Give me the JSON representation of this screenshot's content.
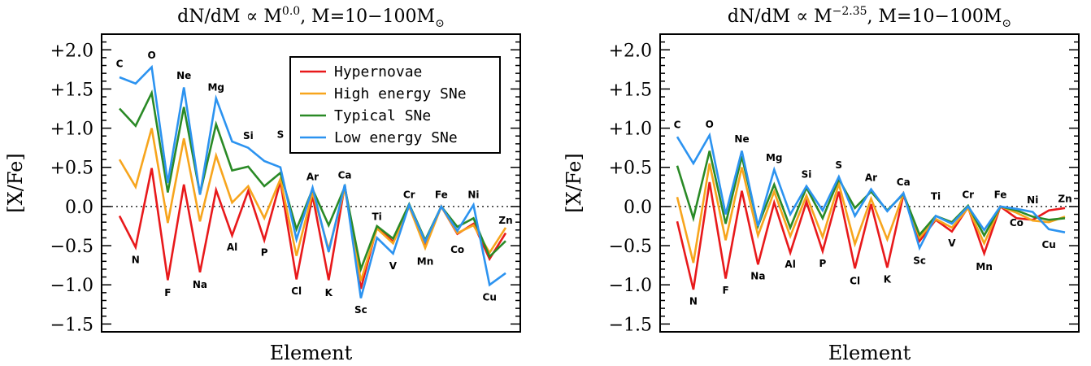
{
  "chart_data": [
    {
      "type": "line",
      "title": "dN/dM ∝ M",
      "title_exponent": "0.0",
      "title_suffix": ", M=10−100M",
      "title_sun": "⊙",
      "xlabel": "Element",
      "ylabel": "[X/Fe]",
      "ylim": [
        -1.6,
        2.2
      ],
      "yticks": [
        2.0,
        1.5,
        1.0,
        0.5,
        0.0,
        -0.5,
        -1.0,
        -1.5
      ],
      "ytick_labels": [
        "+2.0",
        "+1.5",
        "+1.0",
        "+0.5",
        "0.0",
        "−0.5",
        "−1.0",
        "−1.5"
      ],
      "reference_line": 0.0,
      "elements": [
        "C",
        "N",
        "O",
        "F",
        "Ne",
        "Na",
        "Mg",
        "Al",
        "Si",
        "P",
        "S",
        "Cl",
        "Ar",
        "K",
        "Ca",
        "Sc",
        "Ti",
        "V",
        "Cr",
        "Mn",
        "Fe",
        "Co",
        "Ni",
        "Cu",
        "Zn"
      ],
      "series": [
        {
          "name": "Hypernovae",
          "color": "#e8191b",
          "values": [
            -0.12,
            -0.52,
            0.49,
            -0.94,
            0.28,
            -0.84,
            0.21,
            -0.37,
            0.2,
            -0.43,
            0.32,
            -0.93,
            0.14,
            -0.94,
            0.27,
            -1.05,
            -0.26,
            -0.45,
            0.01,
            -0.5,
            0.0,
            -0.35,
            -0.22,
            -0.67,
            -0.34
          ]
        },
        {
          "name": "High energy SNe",
          "color": "#f7a51d",
          "values": [
            0.6,
            0.25,
            1.0,
            -0.21,
            0.87,
            -0.19,
            0.65,
            0.05,
            0.26,
            -0.15,
            0.35,
            -0.63,
            0.18,
            -0.55,
            0.23,
            -0.95,
            -0.28,
            -0.47,
            0.0,
            -0.53,
            0.0,
            -0.34,
            -0.24,
            -0.59,
            -0.27
          ]
        },
        {
          "name": "Typical SNe",
          "color": "#2a8a26",
          "values": [
            1.25,
            1.03,
            1.45,
            0.18,
            1.27,
            0.16,
            1.05,
            0.46,
            0.51,
            0.26,
            0.43,
            -0.29,
            0.22,
            -0.24,
            0.25,
            -0.8,
            -0.25,
            -0.41,
            0.03,
            -0.43,
            0.0,
            -0.26,
            -0.15,
            -0.64,
            -0.44
          ]
        },
        {
          "name": "Low energy SNe",
          "color": "#2c93f0",
          "values": [
            1.65,
            1.57,
            1.78,
            0.3,
            1.52,
            0.15,
            1.38,
            0.83,
            0.75,
            0.58,
            0.5,
            -0.42,
            0.24,
            -0.58,
            0.28,
            -1.17,
            -0.4,
            -0.6,
            0.02,
            -0.45,
            0.0,
            -0.31,
            0.02,
            -1.0,
            -0.85
          ]
        }
      ],
      "label_y": [
        1.82,
        -0.68,
        1.93,
        -1.1,
        1.67,
        -1.0,
        1.52,
        -0.52,
        0.9,
        -0.59,
        0.92,
        -1.08,
        0.38,
        -1.1,
        0.4,
        -1.32,
        -0.13,
        -0.76,
        0.15,
        -0.7,
        0.15,
        -0.55,
        0.15,
        -1.16,
        -0.18
      ],
      "legend": {
        "position": "top-right",
        "entries": [
          "Hypernovae",
          "High energy SNe",
          "Typical SNe",
          "Low energy SNe"
        ],
        "colors": [
          "#e8191b",
          "#f7a51d",
          "#2a8a26",
          "#2c93f0"
        ]
      }
    },
    {
      "type": "line",
      "title": "dN/dM ∝ M",
      "title_exponent": "−2.35",
      "title_suffix": ", M=10−100M",
      "title_sun": "⊙",
      "xlabel": "Element",
      "ylabel": "[X/Fe]",
      "ylim": [
        -1.6,
        2.2
      ],
      "yticks": [
        2.0,
        1.5,
        1.0,
        0.5,
        0.0,
        -0.5,
        -1.0,
        -1.5
      ],
      "ytick_labels": [
        "+2.0",
        "+1.5",
        "+1.0",
        "+0.5",
        "0.0",
        "−0.5",
        "−1.0",
        "−1.5"
      ],
      "reference_line": 0.0,
      "elements": [
        "C",
        "N",
        "O",
        "F",
        "Ne",
        "Na",
        "Mg",
        "Al",
        "Si",
        "P",
        "S",
        "Cl",
        "Ar",
        "K",
        "Ca",
        "Sc",
        "Ti",
        "V",
        "Cr",
        "Mn",
        "Fe",
        "Co",
        "Ni",
        "Cu",
        "Zn"
      ],
      "series": [
        {
          "name": "Hypernovae",
          "color": "#e8191b",
          "values": [
            -0.19,
            -1.06,
            0.31,
            -0.92,
            0.2,
            -0.74,
            0.05,
            -0.59,
            0.06,
            -0.57,
            0.19,
            -0.79,
            0.03,
            -0.78,
            0.15,
            -0.44,
            -0.17,
            -0.32,
            -0.01,
            -0.6,
            0.0,
            -0.15,
            -0.17,
            -0.05,
            -0.02
          ]
        },
        {
          "name": "High energy SNe",
          "color": "#f7a51d",
          "values": [
            0.12,
            -0.72,
            0.55,
            -0.43,
            0.5,
            -0.37,
            0.19,
            -0.38,
            0.14,
            -0.39,
            0.29,
            -0.48,
            0.1,
            -0.42,
            0.16,
            -0.4,
            -0.16,
            -0.27,
            -0.02,
            -0.47,
            0.0,
            -0.08,
            -0.18,
            -0.2,
            -0.13
          ]
        },
        {
          "name": "Typical SNe",
          "color": "#2a8a26",
          "values": [
            0.52,
            -0.15,
            0.71,
            -0.22,
            0.64,
            -0.25,
            0.28,
            -0.27,
            0.24,
            -0.15,
            0.35,
            -0.02,
            0.19,
            -0.05,
            0.16,
            -0.36,
            -0.12,
            -0.2,
            0.01,
            -0.37,
            0.0,
            -0.05,
            -0.13,
            -0.17,
            -0.15
          ]
        },
        {
          "name": "Low energy SNe",
          "color": "#2c93f0",
          "values": [
            0.89,
            0.55,
            0.91,
            -0.1,
            0.71,
            -0.25,
            0.47,
            -0.1,
            0.26,
            -0.05,
            0.38,
            -0.12,
            0.22,
            -0.06,
            0.17,
            -0.53,
            -0.12,
            -0.22,
            0.0,
            -0.3,
            0.0,
            -0.03,
            -0.07,
            -0.29,
            -0.33
          ]
        }
      ],
      "label_y": [
        1.04,
        -1.21,
        1.05,
        -1.07,
        0.86,
        -0.89,
        0.62,
        -0.74,
        0.41,
        -0.73,
        0.53,
        -0.95,
        0.37,
        -0.93,
        0.31,
        -0.69,
        0.13,
        -0.47,
        0.15,
        -0.77,
        0.15,
        -0.21,
        0.08,
        -0.49,
        0.1
      ]
    }
  ]
}
